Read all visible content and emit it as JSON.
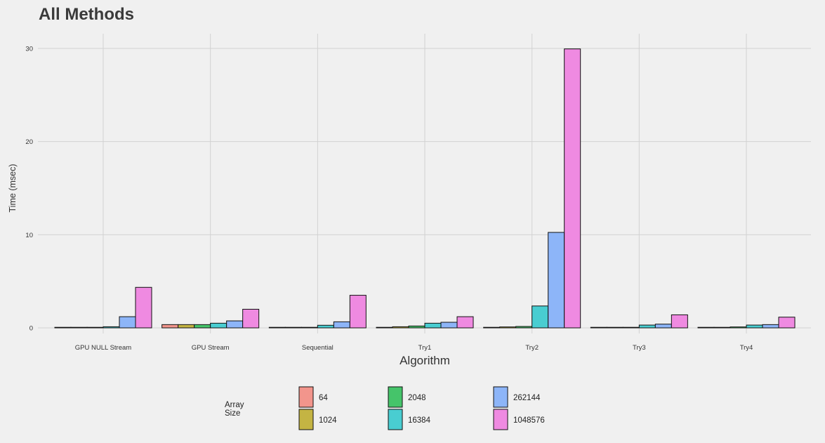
{
  "chart_data": {
    "type": "bar",
    "title": "All Methods",
    "xlabel": "Algorithm",
    "ylabel": "Time (msec)",
    "ylim": [
      0,
      30
    ],
    "yticks": [
      0,
      10,
      20,
      30
    ],
    "grid": true,
    "legend_position": "bottom",
    "legend_title": "Array Size",
    "categories": [
      "GPU NULL Stream",
      "GPU Stream",
      "Sequential",
      "Try1",
      "Try2",
      "Try3",
      "Try4"
    ],
    "series": [
      {
        "name": "64",
        "color": "#f2958c",
        "values": [
          0.02,
          0.35,
          0.0,
          0.05,
          0.05,
          0.02,
          0.02
        ]
      },
      {
        "name": "1024",
        "color": "#c4b443",
        "values": [
          0.03,
          0.35,
          0.0,
          0.12,
          0.1,
          0.03,
          0.03
        ]
      },
      {
        "name": "2048",
        "color": "#45c46a",
        "values": [
          0.03,
          0.35,
          0.01,
          0.2,
          0.15,
          0.04,
          0.1
        ]
      },
      {
        "name": "16384",
        "color": "#49cdd1",
        "values": [
          0.12,
          0.5,
          0.28,
          0.5,
          2.35,
          0.3,
          0.3
        ]
      },
      {
        "name": "262144",
        "color": "#8db5f8",
        "values": [
          1.2,
          0.75,
          0.65,
          0.6,
          10.25,
          0.4,
          0.35
        ]
      },
      {
        "name": "1048576",
        "color": "#ef8ae1",
        "values": [
          4.35,
          2.0,
          3.5,
          1.2,
          29.95,
          1.4,
          1.15
        ]
      }
    ]
  }
}
